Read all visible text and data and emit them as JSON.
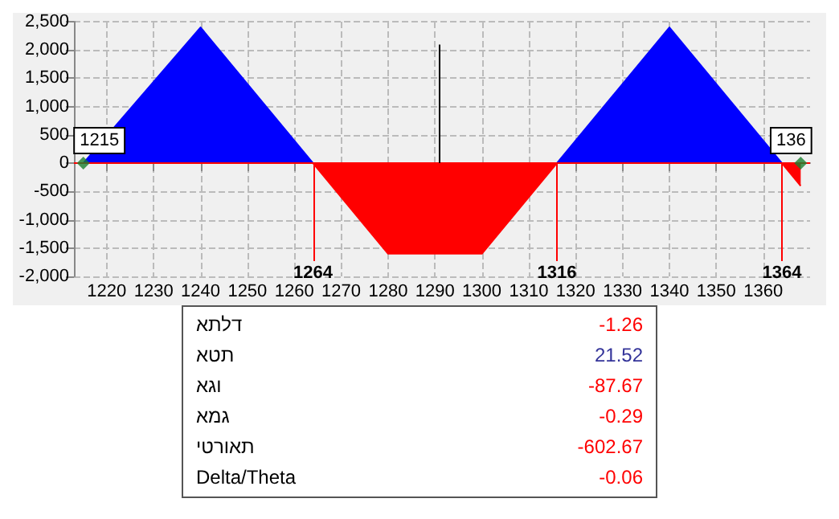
{
  "chart_data": [
    {
      "type": "area",
      "series": [
        {
          "color": "#0000ff",
          "x": [
            1215,
            1240,
            1264,
            1290,
            1316,
            1340,
            1364
          ],
          "values": [
            0,
            2400,
            0,
            null,
            0,
            2400,
            0
          ]
        },
        {
          "color": "#ff0000",
          "x": [
            1264,
            1280,
            1300,
            1316,
            1340,
            1364,
            1368
          ],
          "values": [
            0,
            -1600,
            -1600,
            0,
            null,
            0,
            -400
          ]
        },
        {
          "type": "scatter",
          "color": "#1a7f2e",
          "marker": "diamond",
          "x": [
            1215,
            1368
          ],
          "values": [
            0,
            0
          ]
        }
      ],
      "xlim": [
        1213,
        1370
      ],
      "xticks": [
        1220,
        1230,
        1240,
        1250,
        1260,
        1270,
        1280,
        1290,
        1300,
        1310,
        1320,
        1330,
        1340,
        1350,
        1360
      ],
      "ylim": [
        -2000,
        2500
      ],
      "yticks": [
        {
          "value": -2000,
          "label": "-2,000"
        },
        {
          "value": -1500,
          "label": "-1,500"
        },
        {
          "value": -1000,
          "label": "-1,000"
        },
        -500,
        0,
        500,
        {
          "value": 1000,
          "label": "1,000"
        },
        {
          "value": 1500,
          "label": "1,500"
        },
        {
          "value": 2000,
          "label": "2,000"
        },
        {
          "value": 2500,
          "label": "2,500"
        }
      ],
      "grid": true,
      "marker": "none",
      "ref_lines": [
        {
          "axis": "y",
          "value": 0,
          "label": null,
          "color": "#ff0000"
        },
        {
          "axis": "x",
          "value": 1264,
          "label": "1264",
          "color": "#ff0000"
        },
        {
          "axis": "x",
          "value": 1316,
          "label": "1316",
          "color": "#ff0000"
        },
        {
          "axis": "x",
          "value": 1364,
          "label": "1364",
          "color": "#ff0000"
        },
        {
          "axis": "x",
          "value": 1291,
          "label": null,
          "color": "#000000"
        }
      ],
      "annotations": [
        {
          "text": "1215",
          "x": 1215,
          "y": 0
        },
        {
          "text": "136",
          "x": 1368,
          "y": 0
        }
      ]
    },
    {
      "type": "other",
      "categories": [
        "דלתא",
        "תטא",
        "וגא",
        "גמא",
        "תאורטי",
        "Delta/Theta"
      ],
      "values": [
        -1.26,
        21.52,
        -87.67,
        -0.29,
        -602.67,
        -0.06
      ],
      "data_labels": true
    }
  ]
}
